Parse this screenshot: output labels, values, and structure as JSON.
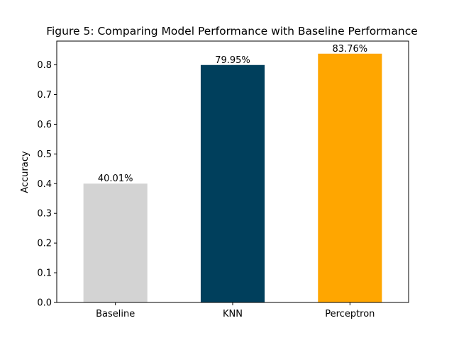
{
  "chart_data": {
    "type": "bar",
    "title": "Figure 5: Comparing Model Performance with Baseline Performance",
    "xlabel": "",
    "ylabel": "Accuracy",
    "categories": [
      "Baseline",
      "KNN",
      "Perceptron"
    ],
    "values": [
      0.4001,
      0.7995,
      0.8376
    ],
    "data_labels": [
      "40.01%",
      "79.95%",
      "83.76%"
    ],
    "colors": [
      "#d3d3d3",
      "#003f5c",
      "#ffa600"
    ],
    "ylim": [
      0,
      0.88
    ],
    "yticks": [
      0.0,
      0.1,
      0.2,
      0.3,
      0.4,
      0.5,
      0.6,
      0.7,
      0.8
    ],
    "ytick_labels": [
      "0.0",
      "0.1",
      "0.2",
      "0.3",
      "0.4",
      "0.5",
      "0.6",
      "0.7",
      "0.8"
    ],
    "grid": false,
    "legend": "none"
  }
}
